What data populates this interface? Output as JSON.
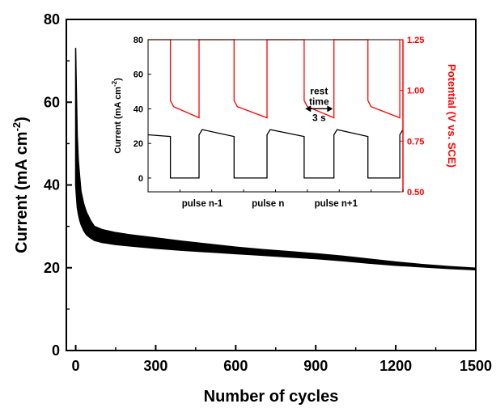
{
  "chart_data": [
    {
      "id": "main",
      "type": "area",
      "xlabel": "Number of cycles",
      "ylabel_main": "Current (mA cm",
      "ylabel_sup": "-2",
      "ylabel_tail": ")",
      "xlim": [
        -35,
        1500
      ],
      "ylim": [
        0,
        80
      ],
      "xticks": [
        {
          "value": 0,
          "label": "0"
        },
        {
          "value": 300,
          "label": "300"
        },
        {
          "value": 600,
          "label": "600"
        },
        {
          "value": 900,
          "label": "900"
        },
        {
          "value": 1200,
          "label": "1200"
        },
        {
          "value": 1500,
          "label": "1500"
        }
      ],
      "yticks": [
        {
          "value": 0,
          "label": "0"
        },
        {
          "value": 20,
          "label": "20"
        },
        {
          "value": 40,
          "label": "40"
        },
        {
          "value": 60,
          "label": "60"
        },
        {
          "value": 80,
          "label": "80"
        }
      ],
      "grid": false,
      "color": "#000000",
      "series": [
        {
          "upper": {
            "x": [
              0,
              3,
              6,
              10,
              15,
              20,
              30,
              40,
              55,
              70,
              100,
              150,
              200,
              300,
              400,
              500,
              600,
              700,
              800,
              900,
              1000,
              1100,
              1200,
              1300,
              1400,
              1500
            ],
            "y": [
              73,
              62,
              52,
              46,
              42,
              38.5,
              35.5,
              33.5,
              31.5,
              30.0,
              29.2,
              28.5,
              28.0,
              27.2,
              26.4,
              25.7,
              25.0,
              24.4,
              23.9,
              23.4,
              22.8,
              22.1,
              21.4,
              20.8,
              20.3,
              19.9
            ]
          },
          "lower": {
            "x": [
              0,
              3,
              6,
              10,
              15,
              20,
              30,
              40,
              55,
              70,
              100,
              150,
              200,
              300,
              400,
              500,
              600,
              700,
              800,
              900,
              1000,
              1100,
              1200,
              1300,
              1400,
              1500
            ],
            "y": [
              40,
              37,
              34.5,
              33,
              31.5,
              30.5,
              29.0,
              28.0,
              27.2,
              26.6,
              26.1,
              25.6,
              25.3,
              24.7,
              24.2,
              23.8,
              23.4,
              23.0,
              22.6,
              22.2,
              21.7,
              21.1,
              20.6,
              20.2,
              19.8,
              19.5
            ]
          }
        }
      ]
    },
    {
      "id": "inset",
      "type": "line",
      "ylabel_left_main": "Current (mA cm",
      "ylabel_left_sup": "-2",
      "ylabel_left_tail": ")",
      "ylabel_right": "Potential (V vs. SCE)",
      "left_ylim": [
        -8,
        80
      ],
      "right_ylim": [
        0.5,
        1.25
      ],
      "xlim": [
        0,
        12
      ],
      "left_yticks": [
        {
          "value": 0,
          "label": "0"
        },
        {
          "value": 20,
          "label": "20"
        },
        {
          "value": 40,
          "label": "40"
        },
        {
          "value": 60,
          "label": "60"
        },
        {
          "value": 80,
          "label": "80"
        }
      ],
      "right_yticks": [
        {
          "value": 0.5,
          "label": "0.50"
        },
        {
          "value": 0.75,
          "label": "0.75"
        },
        {
          "value": 1.0,
          "label": "1.00"
        },
        {
          "value": 1.25,
          "label": "1.25"
        }
      ],
      "x_category_labels": [
        {
          "x": 2.55,
          "label": "pulse n-1"
        },
        {
          "x": 5.65,
          "label": "pulse n"
        },
        {
          "x": 8.85,
          "label": "pulse n+1"
        }
      ],
      "annotation": {
        "line1": "rest",
        "line2": "time",
        "line3": "3 s",
        "arrow_x": [
          7.4,
          8.7
        ],
        "arrow_y_left": 41
      },
      "current_color": "#000000",
      "potential_color": "#ff0000",
      "current_series": {
        "x": [
          0,
          1.05,
          1.05,
          2.4,
          2.4,
          2.55,
          4.05,
          4.05,
          5.6,
          5.6,
          5.75,
          7.35,
          7.35,
          8.75,
          8.75,
          8.9,
          10.35,
          10.35,
          11.85,
          11.85,
          12
        ],
        "y": [
          25,
          24,
          0,
          0,
          25,
          28,
          24,
          0,
          0,
          25,
          28,
          24,
          0,
          0,
          25,
          28,
          24,
          0,
          0,
          25,
          28
        ]
      },
      "potential_series": {
        "x": [
          0,
          1.05,
          1.05,
          1.2,
          2.4,
          2.4,
          4.05,
          4.05,
          4.2,
          5.6,
          5.6,
          7.35,
          7.35,
          7.5,
          8.75,
          8.75,
          10.35,
          10.35,
          10.5,
          11.85,
          11.85,
          12
        ],
        "y": [
          1.25,
          1.25,
          0.95,
          0.92,
          0.865,
          1.25,
          1.25,
          0.95,
          0.92,
          0.865,
          1.25,
          1.25,
          0.95,
          0.92,
          0.865,
          1.25,
          1.25,
          0.95,
          0.92,
          0.865,
          1.25,
          1.25
        ]
      }
    }
  ]
}
